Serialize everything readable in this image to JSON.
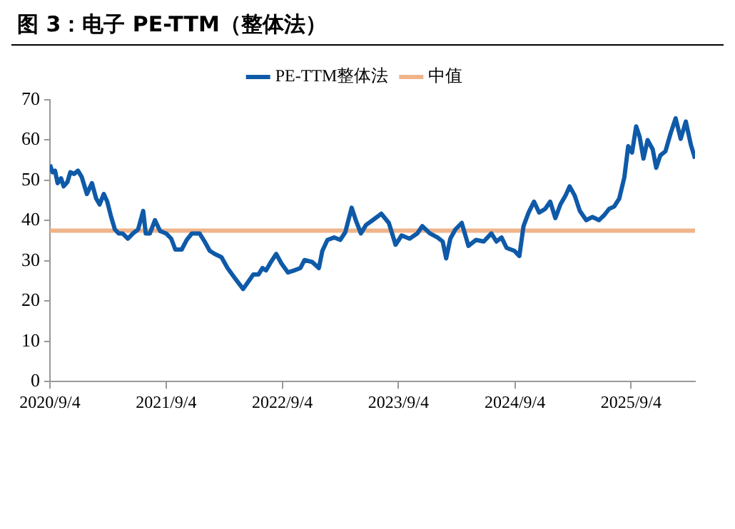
{
  "chart_data": {
    "type": "line",
    "title": "图 3：电子 PE-TTM（整体法）",
    "x": [
      "2020-09-04",
      "2020-09-12",
      "2020-09-20",
      "2020-09-28",
      "2020-10-09",
      "2020-10-17",
      "2020-10-29",
      "2020-11-07",
      "2020-11-19",
      "2020-12-01",
      "2020-12-13",
      "2020-12-29",
      "2021-01-14",
      "2021-01-27",
      "2021-02-07",
      "2021-02-20",
      "2021-03-03",
      "2021-03-14",
      "2021-03-27",
      "2021-04-08",
      "2021-04-20",
      "2021-05-07",
      "2021-05-23",
      "2021-06-08",
      "2021-06-24",
      "2021-07-02",
      "2021-07-15",
      "2021-07-31",
      "2021-08-16",
      "2021-09-04",
      "2021-09-20",
      "2021-10-03",
      "2021-10-23",
      "2021-11-08",
      "2021-11-24",
      "2021-12-18",
      "2022-01-03",
      "2022-01-19",
      "2022-02-04",
      "2022-02-25",
      "2022-03-16",
      "2022-04-09",
      "2022-05-04",
      "2022-05-20",
      "2022-06-05",
      "2022-06-21",
      "2022-07-04",
      "2022-07-15",
      "2022-07-28",
      "2022-08-16",
      "2022-09-01",
      "2022-09-22",
      "2022-10-11",
      "2022-10-31",
      "2022-11-13",
      "2022-12-07",
      "2022-12-28",
      "2023-01-08",
      "2023-01-24",
      "2023-02-14",
      "2023-03-05",
      "2023-03-21",
      "2023-04-10",
      "2023-04-23",
      "2023-05-09",
      "2023-05-25",
      "2023-06-10",
      "2023-07-12",
      "2023-08-05",
      "2023-08-26",
      "2023-09-14",
      "2023-10-09",
      "2023-11-02",
      "2023-11-18",
      "2023-12-12",
      "2024-01-05",
      "2024-01-21",
      "2024-02-01",
      "2024-02-14",
      "2024-03-01",
      "2024-03-21",
      "2024-04-11",
      "2024-05-05",
      "2024-05-29",
      "2024-06-22",
      "2024-07-08",
      "2024-07-24",
      "2024-08-09",
      "2024-09-02",
      "2024-09-18",
      "2024-10-01",
      "2024-10-17",
      "2024-11-03",
      "2024-11-19",
      "2024-12-08",
      "2024-12-24",
      "2025-01-09",
      "2025-01-25",
      "2025-02-10",
      "2025-02-23",
      "2025-03-11",
      "2025-03-27",
      "2025-04-16",
      "2025-05-05",
      "2025-05-26",
      "2025-06-11",
      "2025-06-27",
      "2025-07-13",
      "2025-07-29",
      "2025-08-14",
      "2025-08-26",
      "2025-09-07",
      "2025-09-20",
      "2025-10-01",
      "2025-10-13",
      "2025-10-26",
      "2025-11-11",
      "2025-11-22",
      "2025-12-05",
      "2025-12-21",
      "2026-01-06",
      "2026-01-22",
      "2026-02-07",
      "2026-02-23",
      "2026-03-11",
      "2026-03-24"
    ],
    "series": [
      {
        "name": "PE-TTM整体法",
        "color": "#0f5aa8",
        "values": [
          53.9,
          52,
          52.4,
          49.3,
          50.5,
          48.5,
          49.6,
          52,
          51.6,
          52.4,
          50.8,
          46.6,
          49.3,
          45.5,
          44,
          46.6,
          44.7,
          41.3,
          37.8,
          36.8,
          36.8,
          35.5,
          36.8,
          37.8,
          42.4,
          36.8,
          36.8,
          40.1,
          37.4,
          36.8,
          35.5,
          32.8,
          32.8,
          35.2,
          36.8,
          36.8,
          34.8,
          32.5,
          31.7,
          30.9,
          28.2,
          25.6,
          23,
          24.8,
          26.6,
          26.6,
          28.2,
          27.6,
          29.4,
          31.7,
          29.4,
          27.1,
          27.6,
          28.2,
          30.2,
          29.7,
          28.2,
          32.5,
          35.2,
          35.8,
          35.2,
          37.1,
          43.2,
          40.1,
          36.8,
          38.9,
          39.8,
          41.7,
          39.4,
          34,
          36.3,
          35.5,
          36.8,
          38.6,
          36.8,
          35.8,
          34.8,
          30.6,
          35.5,
          37.8,
          39.4,
          33.7,
          35.2,
          34.8,
          36.8,
          34.8,
          35.8,
          33.2,
          32.5,
          31.2,
          38.6,
          42,
          44.7,
          42,
          42.9,
          44.7,
          40.6,
          44,
          46.2,
          48.5,
          46.2,
          42.4,
          40.1,
          40.9,
          40.1,
          41.3,
          42.9,
          43.5,
          45.5,
          50.8,
          58.5,
          56.9,
          63.4,
          60.8,
          55.4,
          60,
          57.7,
          53.1,
          56.2,
          57.2,
          61.6,
          65.4,
          60.3,
          64.6,
          58.8,
          55.4
        ]
      }
    ],
    "ref_lines": [
      {
        "axis": "y",
        "value": 37.5,
        "label": "中值",
        "color": "#f0b48a"
      }
    ],
    "xlim": [
      "2020-09-04",
      "2026-03-24"
    ],
    "xticks": [
      {
        "value": "2020-09-04",
        "label": "2020/9/4"
      },
      {
        "value": "2021-09-04",
        "label": "2021/9/4"
      },
      {
        "value": "2022-09-04",
        "label": "2022/9/4"
      },
      {
        "value": "2023-09-04",
        "label": "2023/9/4"
      },
      {
        "value": "2024-09-04",
        "label": "2024/9/4"
      },
      {
        "value": "2025-09-04",
        "label": "2025/9/4"
      }
    ],
    "ylim": [
      0,
      70
    ],
    "yticks": [
      0,
      10,
      20,
      30,
      40,
      50,
      60,
      70
    ],
    "grid": false,
    "legend": "top",
    "marker": "none",
    "line_style": "solid"
  }
}
